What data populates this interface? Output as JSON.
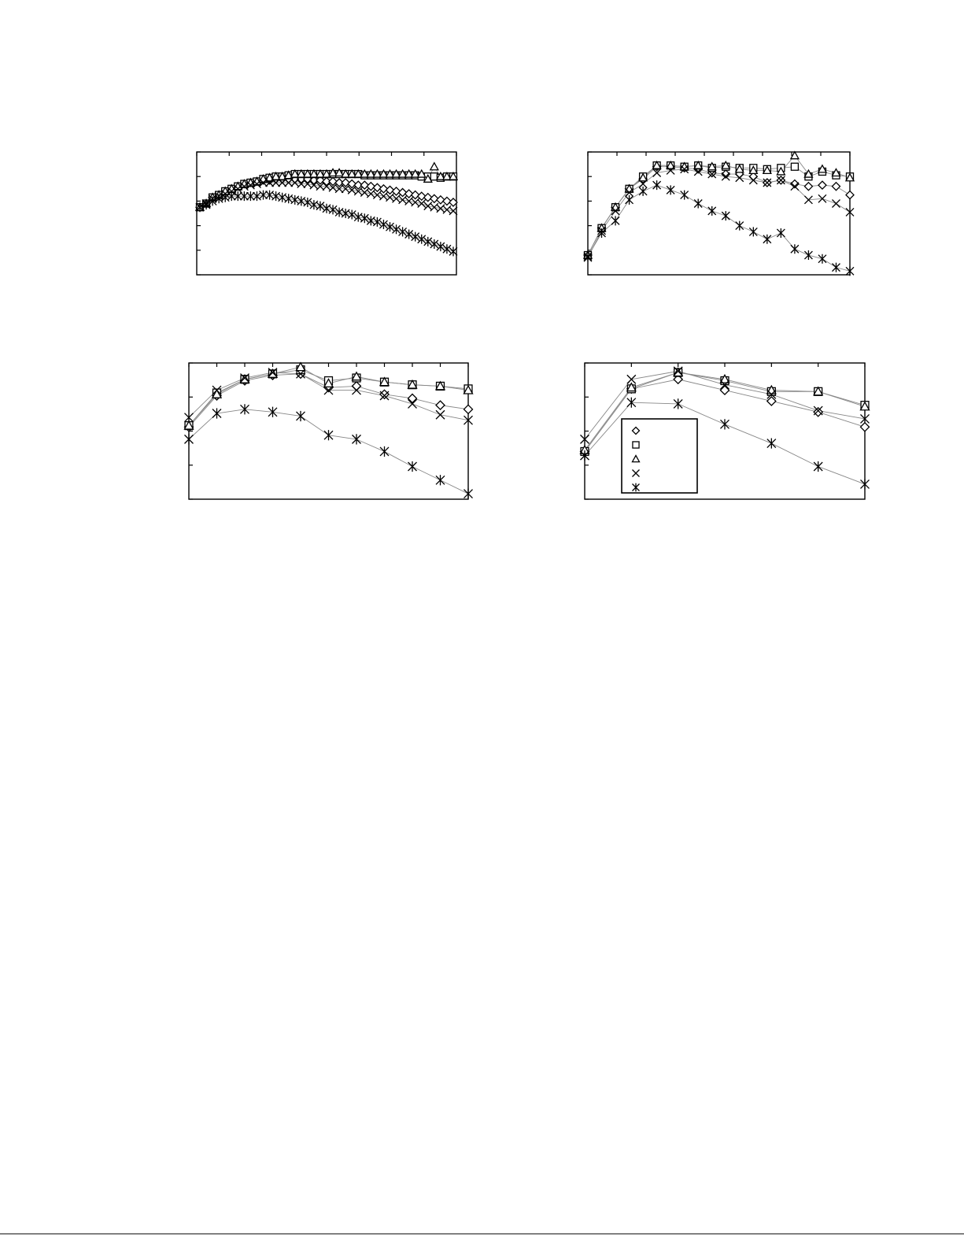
{
  "chart_data": [
    {
      "type": "line",
      "x": [
        1,
        2,
        3,
        4,
        5,
        6,
        7,
        8,
        9,
        10,
        11,
        12,
        13,
        14,
        15,
        16,
        17,
        18,
        19,
        20,
        21,
        22,
        23,
        24,
        25,
        26,
        27,
        28,
        29,
        30,
        31,
        32,
        33,
        34,
        35,
        36,
        37,
        38,
        39,
        40,
        41
      ],
      "xlim": [
        0.5,
        41.5
      ],
      "ylim": [
        0,
        100
      ],
      "x_ticks": 8,
      "y_ticks": 5,
      "grid": false,
      "series": [
        {
          "marker": "diamond",
          "values": [
            55,
            58,
            63,
            65,
            68,
            70,
            72,
            74,
            75,
            76,
            77,
            77,
            78,
            78,
            78,
            78,
            78,
            78,
            77,
            77,
            76,
            76,
            75,
            75,
            74,
            73,
            73,
            72,
            71,
            70,
            69,
            68,
            67,
            66,
            65,
            64,
            63,
            62,
            61,
            60,
            59
          ]
        },
        {
          "marker": "square",
          "values": [
            55,
            58,
            63,
            65,
            68,
            70,
            72,
            74,
            75,
            76,
            78,
            79,
            80,
            80,
            81,
            82,
            82,
            82,
            82,
            82,
            82,
            82,
            82,
            82,
            82,
            82,
            81,
            81,
            81,
            81,
            81,
            81,
            81,
            81,
            81,
            80,
            80,
            80,
            79,
            80,
            80
          ]
        },
        {
          "marker": "triangle",
          "values": [
            55,
            58,
            63,
            65,
            68,
            70,
            72,
            74,
            75,
            76,
            78,
            79,
            80,
            80,
            81,
            82,
            82,
            82,
            82,
            82,
            82,
            83,
            83,
            82,
            82,
            82,
            82,
            82,
            82,
            82,
            82,
            82,
            82,
            82,
            82,
            82,
            78,
            88,
            80,
            80,
            80
          ]
        },
        {
          "marker": "x",
          "values": [
            55,
            58,
            62,
            64,
            66,
            68,
            70,
            72,
            73,
            74,
            75,
            75,
            75,
            75,
            75,
            75,
            74,
            74,
            73,
            72,
            72,
            71,
            70,
            70,
            69,
            68,
            67,
            66,
            65,
            64,
            63,
            62,
            61,
            60,
            59,
            58,
            56,
            55,
            54,
            53,
            52
          ]
        },
        {
          "marker": "asterisk",
          "values": [
            55,
            57,
            60,
            62,
            63,
            64,
            64,
            64,
            64,
            64,
            65,
            65,
            64,
            63,
            62,
            61,
            60,
            59,
            57,
            56,
            54,
            53,
            51,
            50,
            49,
            47,
            46,
            44,
            43,
            41,
            39,
            37,
            35,
            33,
            31,
            29,
            27,
            25,
            23,
            21,
            19
          ]
        }
      ]
    },
    {
      "type": "line",
      "x": [
        1,
        2,
        3,
        4,
        5,
        6,
        7,
        8,
        9,
        10,
        11,
        12,
        13,
        14,
        15,
        16,
        17,
        18,
        19,
        20
      ],
      "xlim": [
        1,
        20
      ],
      "ylim": [
        0,
        100
      ],
      "x_ticks": 9,
      "y_ticks": 5,
      "grid": false,
      "series": [
        {
          "marker": "diamond",
          "values": [
            16,
            38,
            55,
            70,
            78,
            88,
            88,
            87,
            86,
            83,
            82,
            82,
            80,
            75,
            77,
            74,
            72,
            73,
            72,
            65
          ]
        },
        {
          "marker": "square",
          "values": [
            16,
            38,
            55,
            70,
            80,
            89,
            89,
            88,
            89,
            87,
            88,
            87,
            87,
            86,
            87,
            88,
            80,
            84,
            81,
            80
          ]
        },
        {
          "marker": "triangle",
          "values": [
            16,
            38,
            55,
            70,
            79,
            89,
            89,
            88,
            89,
            88,
            89,
            86,
            85,
            85,
            84,
            97,
            82,
            86,
            83,
            79
          ]
        },
        {
          "marker": "x",
          "values": [
            14,
            36,
            52,
            67,
            74,
            83,
            85,
            86,
            84,
            82,
            80,
            79,
            77,
            75,
            77,
            72,
            61,
            62,
            58,
            51
          ]
        },
        {
          "marker": "asterisk",
          "values": [
            15,
            34,
            44,
            61,
            68,
            73,
            69,
            65,
            58,
            52,
            48,
            40,
            35,
            29,
            34,
            21,
            16,
            13,
            6,
            3
          ]
        }
      ]
    },
    {
      "type": "line",
      "x": [
        1,
        2,
        3,
        4,
        5,
        6,
        7,
        8,
        9,
        10,
        11
      ],
      "xlim": [
        1,
        11
      ],
      "ylim": [
        0,
        100
      ],
      "x_ticks": 10,
      "y_ticks": 4,
      "grid": false,
      "series": [
        {
          "marker": "diamond",
          "values": [
            53,
            76,
            87,
            91,
            92,
            82,
            83,
            77,
            74,
            69,
            66
          ]
        },
        {
          "marker": "square",
          "values": [
            54,
            78,
            88,
            92,
            95,
            87,
            89,
            86,
            84,
            83,
            81
          ]
        },
        {
          "marker": "triangle",
          "values": [
            54,
            77,
            88,
            92,
            97,
            85,
            90,
            86,
            84,
            83,
            80
          ]
        },
        {
          "marker": "x",
          "values": [
            60,
            80,
            89,
            93,
            92,
            80,
            80,
            76,
            70,
            62,
            58
          ]
        },
        {
          "marker": "asterisk",
          "values": [
            44,
            63,
            66,
            64,
            61,
            47,
            44,
            35,
            24,
            14,
            4
          ]
        }
      ]
    },
    {
      "type": "line",
      "x": [
        1,
        2,
        3,
        4,
        5,
        6,
        7
      ],
      "xlim": [
        1,
        7
      ],
      "ylim": [
        0,
        100
      ],
      "x_ticks": 6,
      "y_ticks": 4,
      "grid": false,
      "series": [
        {
          "marker": "diamond",
          "values": [
            35,
            81,
            88,
            80,
            72,
            64,
            53
          ]
        },
        {
          "marker": "square",
          "values": [
            35,
            81,
            93,
            87,
            79,
            79,
            69
          ]
        },
        {
          "marker": "triangle",
          "values": [
            36,
            82,
            93,
            88,
            80,
            79,
            68
          ]
        },
        {
          "marker": "x",
          "values": [
            44,
            88,
            94,
            84,
            77,
            65,
            59
          ]
        },
        {
          "marker": "asterisk",
          "values": [
            32,
            71,
            70,
            55,
            41,
            24,
            11
          ]
        }
      ],
      "legend": {
        "position": "lower-left",
        "entries": [
          "",
          "",
          "",
          "",
          ""
        ]
      }
    }
  ]
}
